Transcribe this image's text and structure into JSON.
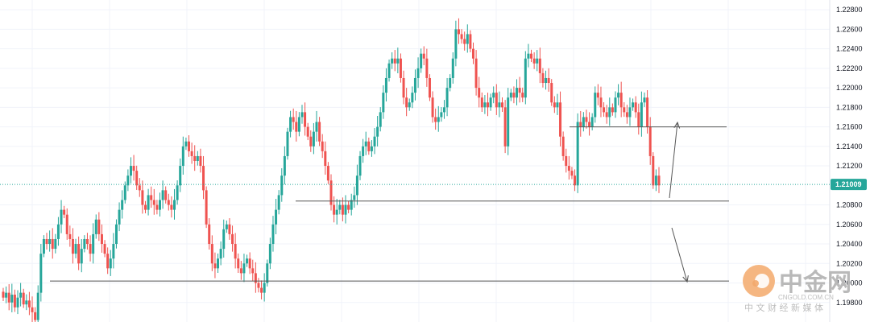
{
  "chart_data": {
    "type": "candlestick",
    "title": "",
    "xlabel": "",
    "ylabel": "",
    "ylim": [
      1.196,
      1.229
    ],
    "y_ticks": [
      "1.22800",
      "1.22600",
      "1.22400",
      "1.22200",
      "1.22000",
      "1.21800",
      "1.21600",
      "1.21400",
      "1.21200",
      "1.20800",
      "1.20600",
      "1.20400",
      "1.20200",
      "1.20000",
      "1.19800"
    ],
    "grid": true,
    "current_price": "1.21009",
    "current_price_value": 1.2101,
    "colors": {
      "up": "#26a69a",
      "down": "#ef5350",
      "price_tag": "#26a69a",
      "line": "#555555",
      "grid": "#f0f3fa"
    },
    "closes": [
      1.1985,
      1.199,
      1.198,
      1.1988,
      1.1975,
      1.1985,
      1.199,
      1.1978,
      1.1982,
      1.1975,
      1.197,
      1.1962,
      1.199,
      1.203,
      1.2045,
      1.204,
      1.2045,
      1.2035,
      1.2045,
      1.206,
      1.2075,
      1.207,
      1.205,
      1.2045,
      1.203,
      1.204,
      1.202,
      1.2035,
      1.2045,
      1.204,
      1.203,
      1.205,
      1.2065,
      1.205,
      1.204,
      1.203,
      1.2015,
      1.2025,
      1.204,
      1.206,
      1.2075,
      1.2085,
      1.21,
      1.211,
      1.212,
      1.2115,
      1.21,
      1.2095,
      1.208,
      1.2075,
      1.209,
      1.2085,
      1.208,
      1.2075,
      1.2085,
      1.2095,
      1.2085,
      1.208,
      1.2075,
      1.2085,
      1.21,
      1.212,
      1.214,
      1.2145,
      1.2135,
      1.213,
      1.2125,
      1.213,
      1.212,
      1.2095,
      1.206,
      1.204,
      1.202,
      1.2015,
      1.2025,
      1.2035,
      1.2055,
      1.206,
      1.205,
      1.204,
      1.2025,
      1.2015,
      1.201,
      1.202,
      1.2025,
      1.2015,
      1.201,
      1.2,
      1.1995,
      1.199,
      1.2,
      1.202,
      1.204,
      1.206,
      1.2075,
      1.209,
      1.211,
      1.213,
      1.2155,
      1.217,
      1.2165,
      1.2155,
      1.217,
      1.2175,
      1.216,
      1.215,
      1.214,
      1.2155,
      1.2165,
      1.2145,
      1.2135,
      1.212,
      1.2105,
      1.208,
      1.207,
      1.2075,
      1.208,
      1.207,
      1.208,
      1.2075,
      1.2085,
      1.209,
      1.211,
      1.213,
      1.214,
      1.2145,
      1.2135,
      1.214,
      1.215,
      1.216,
      1.2175,
      1.2195,
      1.221,
      1.2225,
      1.223,
      1.2225,
      1.223,
      1.221,
      1.219,
      1.218,
      1.2185,
      1.2195,
      1.221,
      1.222,
      1.2235,
      1.223,
      1.221,
      1.219,
      1.217,
      1.2165,
      1.217,
      1.2175,
      1.218,
      1.22,
      1.221,
      1.223,
      1.226,
      1.2255,
      1.225,
      1.2245,
      1.2255,
      1.224,
      1.223,
      1.22,
      1.219,
      1.218,
      1.2185,
      1.218,
      1.219,
      1.2195,
      1.218,
      1.2185,
      1.218,
      1.214,
      1.219,
      1.2195,
      1.219,
      1.22,
      1.2195,
      1.219,
      1.223,
      1.2235,
      1.223,
      1.2225,
      1.223,
      1.2215,
      1.2205,
      1.221,
      1.2205,
      1.2185,
      1.218,
      1.2185,
      1.215,
      1.213,
      1.212,
      1.2115,
      1.211,
      1.21,
      1.2165,
      1.216,
      1.217,
      1.2165,
      1.216,
      1.217,
      1.2195,
      1.219,
      1.218,
      1.2175,
      1.217,
      1.218,
      1.2175,
      1.219,
      1.2195,
      1.218,
      1.2175,
      1.217,
      1.218,
      1.2185,
      1.2175,
      1.216,
      1.2185,
      1.219,
      1.216,
      1.213,
      1.21,
      1.211,
      1.21
    ],
    "support_lines": [
      1.216,
      1.2084,
      1.2002
    ]
  },
  "watermark": {
    "name": "中金网",
    "url": "CNGOLD.COM.CN",
    "sub": "中 文 财 经 新 媒 体"
  }
}
